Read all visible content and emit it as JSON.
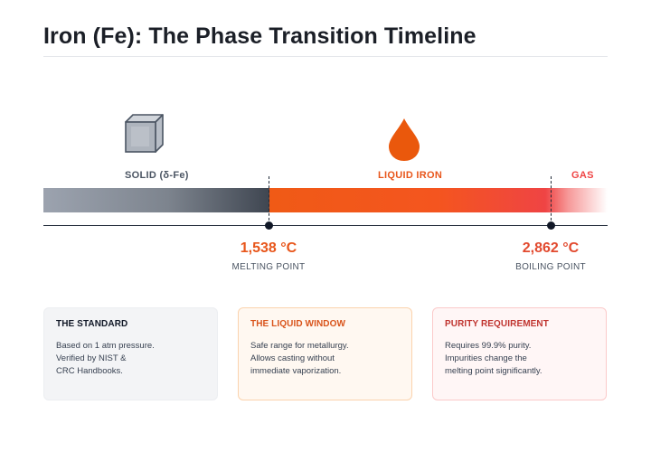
{
  "title": "Iron (Fe): The Phase Transition Timeline",
  "phases": {
    "solid": "SOLID (δ-Fe)",
    "liquid": "LIQUID IRON",
    "gas": "GAS"
  },
  "points": {
    "melting": {
      "value": "1,538 °C",
      "label": "MELTING POINT"
    },
    "boiling": {
      "value": "2,862 °C",
      "label": "BOILING POINT"
    }
  },
  "cards": {
    "standard": {
      "title": "THE STANDARD",
      "lines": [
        "Based on 1 atm pressure.",
        "Verified by NIST &",
        "CRC Handbooks."
      ]
    },
    "liquid": {
      "title": "THE LIQUID WINDOW",
      "lines": [
        "Safe range for metallurgy.",
        "Allows casting without",
        "immediate vaporization."
      ]
    },
    "purity": {
      "title": "PURITY REQUIREMENT",
      "lines": [
        "Requires 99.9% purity.",
        "Impurities change the",
        "melting point significantly."
      ]
    }
  },
  "colors": {
    "solid": "#3f4651",
    "liquid": "#f05a16",
    "gas": "#ef4444"
  },
  "icons": {
    "solid": "cube-icon",
    "liquid": "droplet-icon"
  }
}
